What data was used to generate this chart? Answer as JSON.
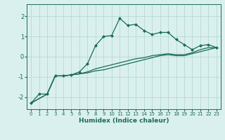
{
  "xlabel": "Humidex (Indice chaleur)",
  "bg_color": "#daf0ee",
  "grid_color": "#b0d4d0",
  "line_color": "#1a6b5a",
  "xlim": [
    -0.5,
    23.5
  ],
  "ylim": [
    -2.6,
    2.6
  ],
  "xticks": [
    0,
    1,
    2,
    3,
    4,
    5,
    6,
    7,
    8,
    9,
    10,
    11,
    12,
    13,
    14,
    15,
    16,
    17,
    18,
    19,
    20,
    21,
    22,
    23
  ],
  "yticks": [
    -2,
    -1,
    0,
    1,
    2
  ],
  "line1_x": [
    0,
    1,
    2,
    3,
    4,
    5,
    6,
    7,
    8,
    9,
    10,
    11,
    12,
    13,
    14,
    15,
    16,
    17,
    18,
    19,
    20,
    21,
    22,
    23
  ],
  "line1_y": [
    -2.3,
    -1.85,
    -1.85,
    -0.95,
    -0.95,
    -0.9,
    -0.75,
    -0.35,
    0.55,
    1.0,
    1.05,
    1.9,
    1.55,
    1.6,
    1.3,
    1.1,
    1.2,
    1.2,
    0.85,
    0.6,
    0.35,
    0.55,
    0.6,
    0.45
  ],
  "line2_x": [
    0,
    2,
    3,
    4,
    5,
    6,
    7,
    8,
    9,
    10,
    11,
    12,
    13,
    14,
    15,
    16,
    17,
    18,
    19,
    20,
    21,
    22,
    23
  ],
  "line2_y": [
    -2.3,
    -1.85,
    -0.95,
    -0.95,
    -0.9,
    -0.85,
    -0.75,
    -0.6,
    -0.5,
    -0.4,
    -0.3,
    -0.2,
    -0.1,
    -0.05,
    0.05,
    0.1,
    0.15,
    0.1,
    0.1,
    0.2,
    0.35,
    0.45,
    0.45
  ],
  "line3_x": [
    0,
    2,
    3,
    4,
    5,
    6,
    7,
    8,
    9,
    10,
    11,
    12,
    13,
    14,
    15,
    16,
    17,
    18,
    19,
    20,
    21,
    22,
    23
  ],
  "line3_y": [
    -2.3,
    -1.85,
    -0.95,
    -0.95,
    -0.9,
    -0.85,
    -0.8,
    -0.7,
    -0.65,
    -0.55,
    -0.45,
    -0.35,
    -0.25,
    -0.15,
    -0.05,
    0.05,
    0.1,
    0.05,
    0.05,
    0.15,
    0.25,
    0.35,
    0.45
  ]
}
